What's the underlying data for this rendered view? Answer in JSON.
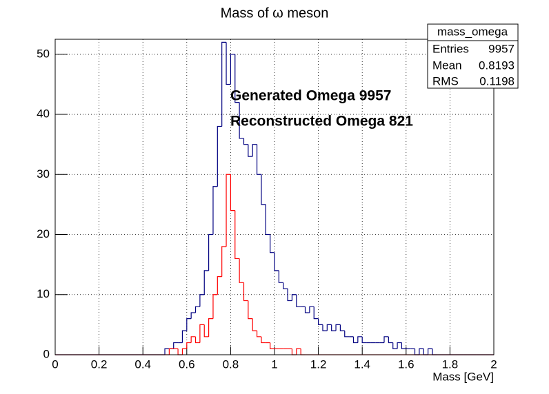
{
  "chart_data": {
    "type": "histogram",
    "title": "Mass of ω meson",
    "x_label": "Mass [GeV]",
    "bins": [
      0,
      0.02,
      0.04,
      0.06,
      0.08,
      0.1,
      0.12,
      0.14,
      0.16,
      0.18,
      0.2,
      0.22,
      0.24,
      0.26,
      0.28,
      0.3,
      0.32,
      0.34,
      0.36,
      0.38,
      0.4,
      0.42,
      0.44,
      0.46,
      0.48,
      0.5,
      0.52,
      0.54,
      0.56,
      0.58,
      0.6,
      0.62,
      0.64,
      0.66,
      0.68,
      0.7,
      0.72,
      0.74,
      0.76,
      0.78,
      0.8,
      0.82,
      0.84,
      0.86,
      0.88,
      0.9,
      0.92,
      0.94,
      0.96,
      0.98,
      1,
      1.02,
      1.04,
      1.06,
      1.08,
      1.1,
      1.12,
      1.14,
      1.16,
      1.18,
      1.2,
      1.22,
      1.24,
      1.26,
      1.28,
      1.3,
      1.32,
      1.34,
      1.36,
      1.38,
      1.4,
      1.42,
      1.44,
      1.46,
      1.48,
      1.5,
      1.52,
      1.54,
      1.56,
      1.58,
      1.6,
      1.62,
      1.64,
      1.66,
      1.68,
      1.7,
      1.72,
      1.74,
      1.76,
      1.78,
      1.8,
      1.82,
      1.84,
      1.86,
      1.88,
      1.9,
      1.92,
      1.94,
      1.96,
      1.98,
      2
    ],
    "series": [
      {
        "color": "#000080",
        "values": [
          0,
          0,
          0,
          0,
          0,
          0,
          0,
          0,
          0,
          0,
          0,
          0,
          0,
          0,
          0,
          0,
          0,
          0,
          0,
          0,
          0,
          0,
          0,
          0,
          0,
          1,
          1,
          2,
          2,
          4,
          6,
          7,
          8,
          10,
          14,
          20,
          28,
          38,
          52,
          45,
          50,
          42,
          36,
          35,
          33,
          35,
          30,
          25,
          20,
          17,
          14,
          12,
          11,
          9,
          10,
          8,
          8,
          7,
          8,
          6,
          5,
          4,
          5,
          4,
          5,
          4,
          3,
          3,
          2,
          3,
          2,
          2,
          2,
          2,
          2,
          3,
          2,
          1,
          2,
          1,
          1,
          1,
          0,
          1,
          0,
          1,
          0,
          0,
          0,
          0,
          0,
          0,
          0,
          0,
          0,
          0,
          0,
          0,
          0,
          0
        ]
      },
      {
        "color": "#ff0000",
        "values": [
          0,
          0,
          0,
          0,
          0,
          0,
          0,
          0,
          0,
          0,
          0,
          0,
          0,
          0,
          0,
          0,
          0,
          0,
          0,
          0,
          0,
          0,
          0,
          0,
          0,
          0,
          1,
          1,
          0,
          1,
          2,
          3,
          2,
          5,
          3,
          6,
          10,
          13,
          18,
          30,
          24,
          16,
          12,
          9,
          6,
          4,
          3,
          2,
          2,
          1,
          1,
          1,
          1,
          1,
          0,
          1,
          0,
          0,
          0,
          0,
          0,
          0,
          0,
          0,
          0,
          0,
          0,
          0,
          0,
          0,
          0,
          0,
          0,
          0,
          0,
          0,
          0,
          0,
          0,
          0,
          0,
          0,
          0,
          0,
          0,
          0,
          0,
          0,
          0,
          0,
          0,
          0,
          0,
          0,
          0,
          0,
          0,
          0,
          0,
          0
        ]
      }
    ],
    "xlim": [
      0,
      2
    ],
    "xticks": [
      0,
      0.2,
      0.4,
      0.6,
      0.8,
      1,
      1.2,
      1.4,
      1.6,
      1.8,
      2
    ],
    "ylim": [
      0,
      52.5
    ],
    "yticks": [
      0,
      10,
      20,
      30,
      40,
      50
    ],
    "grid": true,
    "annotations": [
      {
        "text": "Generated Omega 9957",
        "color": "#000000"
      },
      {
        "text": "Reconstructed Omega 821",
        "color": "#ff0000"
      }
    ],
    "stats_box": {
      "title": "mass_omega",
      "rows": [
        [
          "Entries",
          "9957"
        ],
        [
          "Mean",
          "0.8193"
        ],
        [
          "RMS",
          "0.1198"
        ]
      ]
    }
  }
}
